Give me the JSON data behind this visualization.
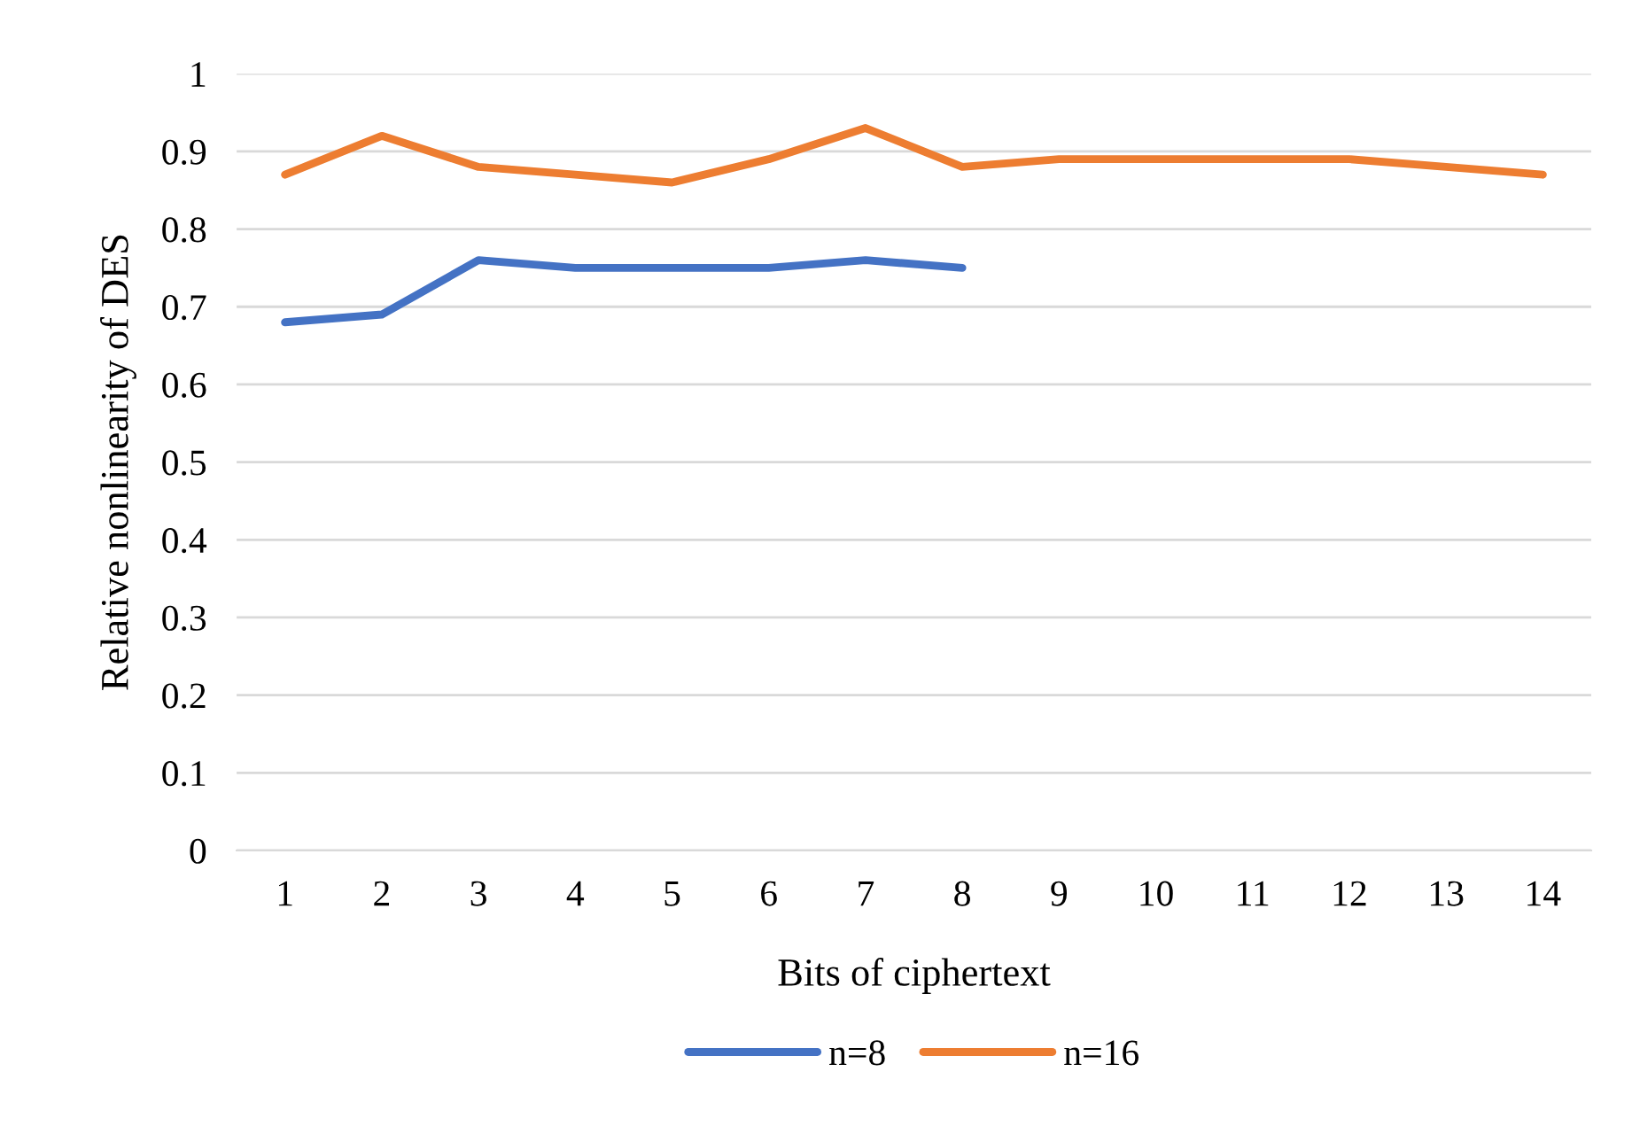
{
  "chart_data": {
    "type": "line",
    "xlabel": "Bits of ciphertext",
    "ylabel": "Relative nonlinearity of DES",
    "categories": [
      "1",
      "2",
      "3",
      "4",
      "5",
      "6",
      "7",
      "8",
      "9",
      "10",
      "11",
      "12",
      "13",
      "14"
    ],
    "series": [
      {
        "name": "n=8",
        "color": "#4472c4",
        "values": [
          0.68,
          0.69,
          0.76,
          0.75,
          0.75,
          0.75,
          0.76,
          0.75,
          null,
          null,
          null,
          null,
          null,
          null
        ]
      },
      {
        "name": "n=16",
        "color": "#ed7d31",
        "values": [
          0.87,
          0.92,
          0.88,
          0.87,
          0.86,
          0.89,
          0.93,
          0.88,
          0.89,
          0.89,
          0.89,
          0.89,
          0.88,
          0.87
        ]
      }
    ],
    "ylim": [
      0,
      1
    ],
    "yticks": [
      0,
      0.1,
      0.2,
      0.3,
      0.4,
      0.5,
      0.6,
      0.7,
      0.8,
      0.9,
      1
    ],
    "grid": "y",
    "legend": "bottom",
    "marker": "none",
    "line_style": "solid"
  }
}
